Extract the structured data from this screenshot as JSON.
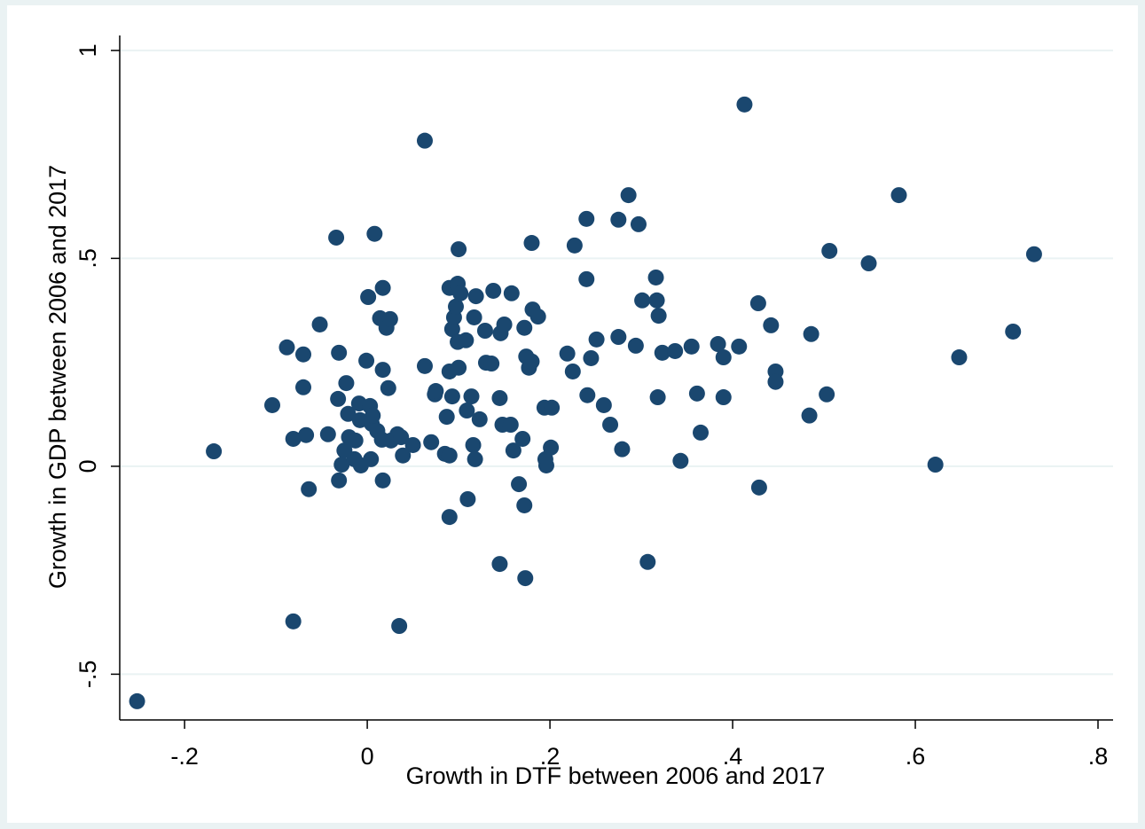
{
  "chart_data": {
    "type": "scatter",
    "x_label": "Growth in DTF between 2006 and 2017",
    "y_label": "Growth in GDP between 2006 and 2017",
    "color": "#1a476f",
    "grid": true,
    "xlim": [
      -0.271,
      0.8165
    ],
    "ylim": [
      -0.61,
      1.036
    ],
    "xticks": [
      {
        "value": -0.2,
        "label": "-.2"
      },
      0,
      {
        "value": 0.2,
        "label": ".2"
      },
      {
        "value": 0.4,
        "label": ".4"
      },
      {
        "value": 0.6,
        "label": ".6"
      },
      {
        "value": 0.8,
        "label": ".8"
      }
    ],
    "yticks": [
      {
        "value": -0.5,
        "label": "-.5"
      },
      0,
      {
        "value": 0.5,
        "label": ".5"
      },
      1
    ],
    "x": [
      -0.252,
      -0.168,
      -0.104,
      -0.088,
      -0.081,
      -0.081,
      -0.07,
      -0.07,
      -0.067,
      -0.064,
      -0.052,
      -0.043,
      -0.034,
      -0.031,
      -0.032,
      -0.031,
      -0.028,
      -0.025,
      -0.023,
      -0.021,
      -0.02,
      -0.014,
      -0.013,
      -0.009,
      -0.008,
      -0.007,
      -0.001,
      0.001,
      0.003,
      0.004,
      0.005,
      0.006,
      0.008,
      0.011,
      0.014,
      0.016,
      0.017,
      0.017,
      0.017,
      0.021,
      0.023,
      0.025,
      0.026,
      0.033,
      0.035,
      0.037,
      0.039,
      0.05,
      0.063,
      0.063,
      0.07,
      0.074,
      0.075,
      0.085,
      0.087,
      0.09,
      0.09,
      0.09,
      0.09,
      0.093,
      0.093,
      0.095,
      0.097,
      0.099,
      0.099,
      0.1,
      0.1,
      0.102,
      0.108,
      0.109,
      0.11,
      0.114,
      0.116,
      0.117,
      0.118,
      0.119,
      0.123,
      0.129,
      0.13,
      0.136,
      0.138,
      0.145,
      0.145,
      0.146,
      0.148,
      0.15,
      0.157,
      0.158,
      0.16,
      0.166,
      0.17,
      0.172,
      0.172,
      0.173,
      0.174,
      0.177,
      0.18,
      0.18,
      0.181,
      0.187,
      0.194,
      0.195,
      0.196,
      0.202,
      0.201,
      0.219,
      0.225,
      0.227,
      0.24,
      0.24,
      0.241,
      0.245,
      0.251,
      0.259,
      0.266,
      0.275,
      0.275,
      0.279,
      0.286,
      0.294,
      0.297,
      0.301,
      0.307,
      0.316,
      0.317,
      0.319,
      0.318,
      0.323,
      0.337,
      0.343,
      0.355,
      0.361,
      0.365,
      0.384,
      0.39,
      0.39,
      0.407,
      0.413,
      0.428,
      0.429,
      0.442,
      0.447,
      0.447,
      0.484,
      0.486,
      0.503,
      0.506,
      0.549,
      0.582,
      0.622,
      0.648,
      0.707,
      0.73
    ],
    "y": [
      -0.565,
      0.036,
      0.147,
      0.286,
      0.066,
      -0.373,
      0.269,
      0.19,
      0.075,
      -0.055,
      0.341,
      0.077,
      0.55,
      0.273,
      0.162,
      -0.034,
      0.004,
      0.038,
      0.2,
      0.126,
      0.07,
      0.017,
      0.062,
      0.151,
      0.111,
      0.002,
      0.254,
      0.407,
      0.145,
      0.017,
      0.102,
      0.122,
      0.559,
      0.085,
      0.356,
      0.064,
      0.429,
      0.232,
      -0.034,
      0.333,
      0.188,
      0.354,
      0.062,
      0.077,
      -0.384,
      0.07,
      0.026,
      0.051,
      0.783,
      0.241,
      0.058,
      0.173,
      0.181,
      0.03,
      0.119,
      0.429,
      -0.122,
      0.026,
      0.228,
      0.33,
      0.168,
      0.358,
      0.384,
      0.439,
      0.299,
      0.522,
      0.237,
      0.416,
      0.303,
      0.134,
      -0.079,
      0.168,
      0.051,
      0.358,
      0.017,
      0.409,
      0.113,
      0.326,
      0.249,
      0.247,
      0.422,
      0.164,
      -0.235,
      0.32,
      0.1,
      0.341,
      0.1,
      0.416,
      0.038,
      -0.043,
      0.066,
      -0.094,
      0.333,
      -0.269,
      0.264,
      0.237,
      0.252,
      0.537,
      0.377,
      0.36,
      0.141,
      0.017,
      0.002,
      0.141,
      0.045,
      0.271,
      0.228,
      0.531,
      0.45,
      0.595,
      0.171,
      0.26,
      0.305,
      0.147,
      0.1,
      0.311,
      0.593,
      0.041,
      0.652,
      0.29,
      0.582,
      0.399,
      -0.23,
      0.454,
      0.399,
      0.362,
      0.166,
      0.273,
      0.277,
      0.013,
      0.288,
      0.175,
      0.081,
      0.294,
      0.262,
      0.166,
      0.288,
      0.87,
      0.392,
      -0.051,
      0.339,
      0.228,
      0.203,
      0.122,
      0.318,
      0.173,
      0.518,
      0.488,
      0.652,
      0.004,
      0.262,
      0.324,
      0.51
    ]
  }
}
